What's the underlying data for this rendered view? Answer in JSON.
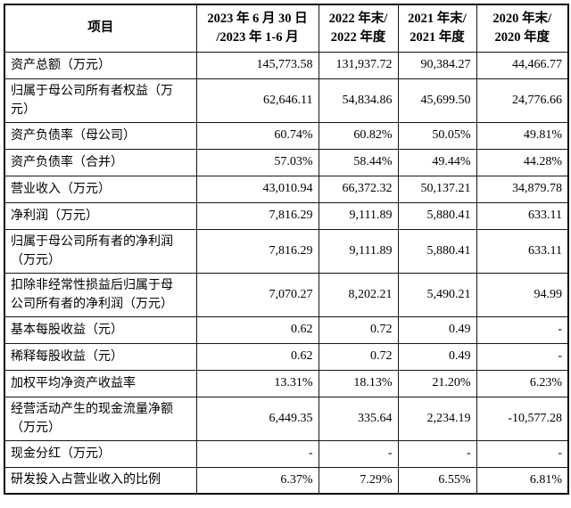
{
  "colors": {
    "background": "#ffffff",
    "border": "#000000",
    "text": "#000000"
  },
  "table": {
    "header": {
      "columns": [
        {
          "lines": [
            "项目",
            ""
          ]
        },
        {
          "lines": [
            "2023 年 6 月 30 日",
            "/2023 年 1-6 月"
          ]
        },
        {
          "lines": [
            "2022 年末/",
            "2022 年度"
          ]
        },
        {
          "lines": [
            "2021 年末/",
            "2021 年度"
          ]
        },
        {
          "lines": [
            "2020 年末/",
            "2020 年度"
          ]
        }
      ]
    },
    "rows": [
      {
        "item": "资产总额（万元）",
        "values": [
          "145,773.58",
          "131,937.72",
          "90,384.27",
          "44,466.77"
        ]
      },
      {
        "item": "归属于母公司所有者权益（万元）",
        "values": [
          "62,646.11",
          "54,834.86",
          "45,699.50",
          "24,776.66"
        ]
      },
      {
        "item": "资产负债率（母公司）",
        "values": [
          "60.74%",
          "60.82%",
          "50.05%",
          "49.81%"
        ]
      },
      {
        "item": "资产负债率（合并）",
        "values": [
          "57.03%",
          "58.44%",
          "49.44%",
          "44.28%"
        ]
      },
      {
        "item": "营业收入（万元）",
        "values": [
          "43,010.94",
          "66,372.32",
          "50,137.21",
          "34,879.78"
        ]
      },
      {
        "item": "净利润（万元）",
        "values": [
          "7,816.29",
          "9,111.89",
          "5,880.41",
          "633.11"
        ]
      },
      {
        "item": "归属于母公司所有者的净利润（万元）",
        "values": [
          "7,816.29",
          "9,111.89",
          "5,880.41",
          "633.11"
        ]
      },
      {
        "item": "扣除非经常性损益后归属于母公司所有者的净利润（万元）",
        "values": [
          "7,070.27",
          "8,202.21",
          "5,490.21",
          "94.99"
        ]
      },
      {
        "item": "基本每股收益（元）",
        "values": [
          "0.62",
          "0.72",
          "0.49",
          "-"
        ]
      },
      {
        "item": "稀释每股收益（元）",
        "values": [
          "0.62",
          "0.72",
          "0.49",
          "-"
        ]
      },
      {
        "item": "加权平均净资产收益率",
        "values": [
          "13.31%",
          "18.13%",
          "21.20%",
          "6.23%"
        ]
      },
      {
        "item": "经营活动产生的现金流量净额（万元）",
        "values": [
          "6,449.35",
          "335.64",
          "2,234.19",
          "-10,577.28"
        ]
      },
      {
        "item": "现金分红（万元）",
        "values": [
          "-",
          "-",
          "-",
          "-"
        ]
      },
      {
        "item": "研发投入占营业收入的比例",
        "values": [
          "6.37%",
          "7.29%",
          "6.55%",
          "6.81%"
        ]
      }
    ]
  }
}
